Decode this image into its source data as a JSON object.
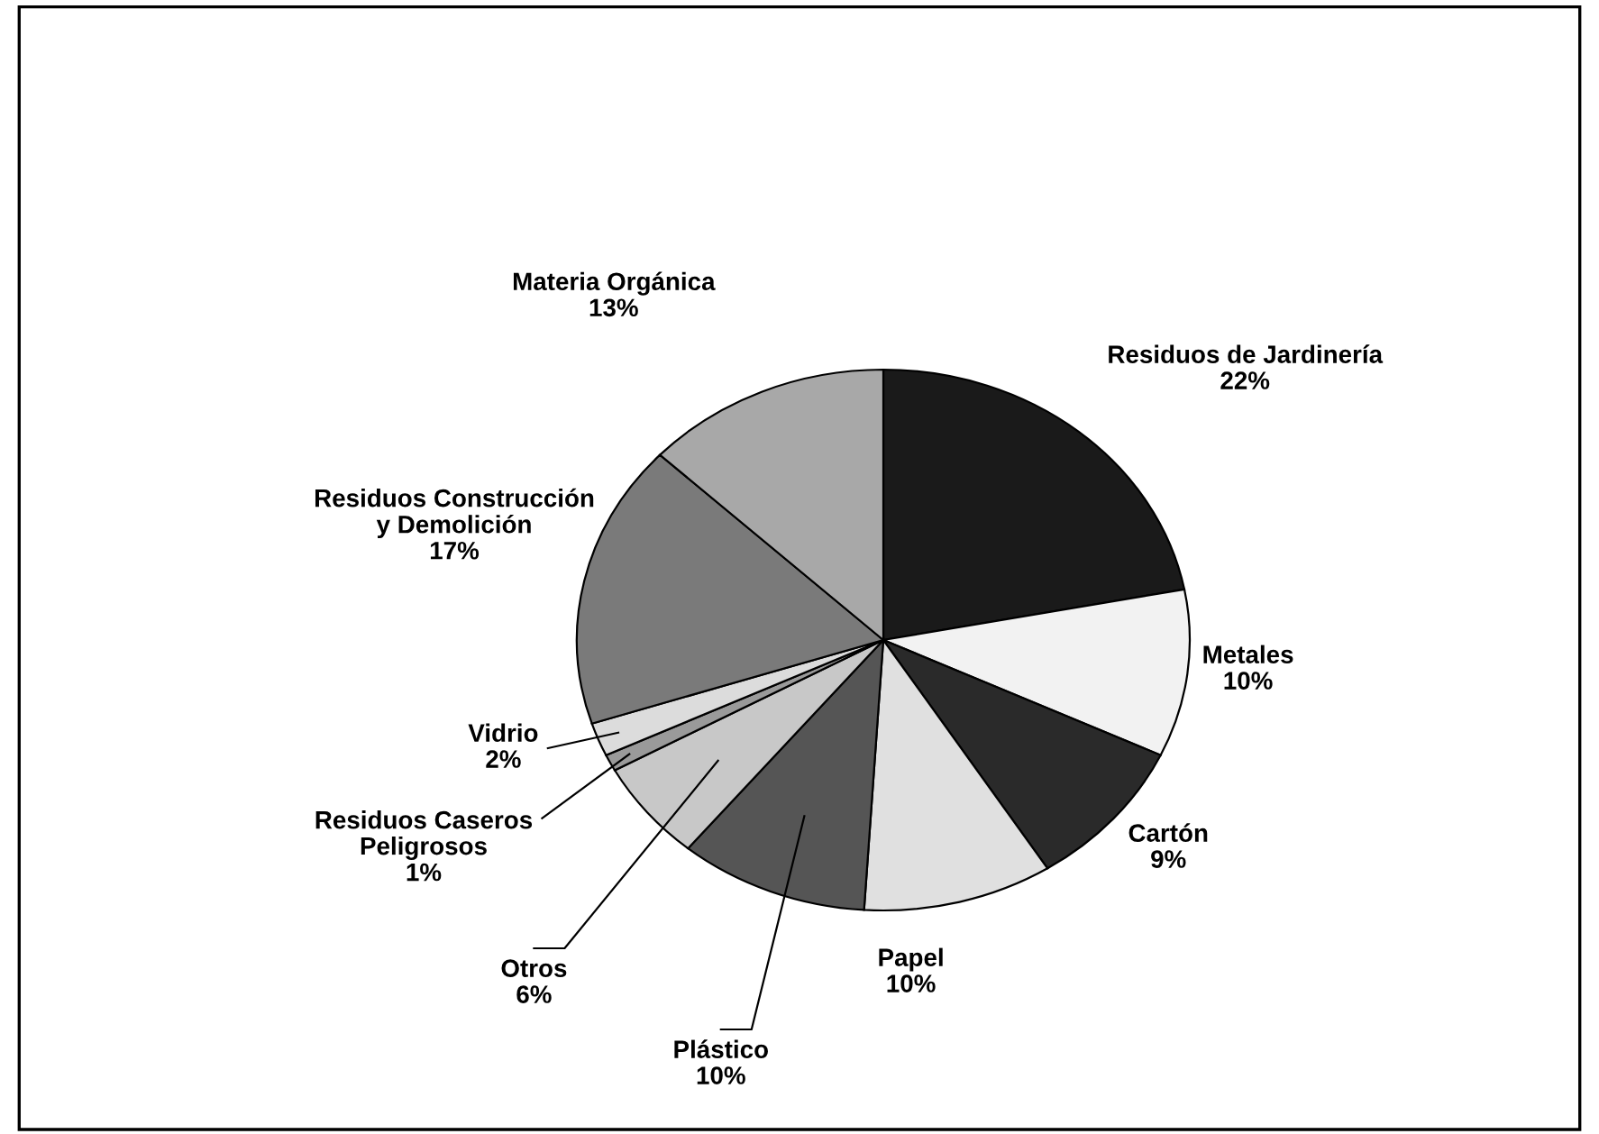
{
  "chart_data": {
    "type": "pie",
    "categories": [
      "Residuos de Jardinería",
      "Metales",
      "Cartón",
      "Papel",
      "Plástico",
      "Otros",
      "Residuos Caseros Peligrosos",
      "Vidrio",
      "Residuos Construcción y Demolición",
      "Materia Orgánica"
    ],
    "values": [
      22,
      10,
      9,
      10,
      10,
      6,
      1,
      2,
      17,
      13
    ],
    "value_labels": [
      "22%",
      "10%",
      "9%",
      "10%",
      "10%",
      "6%",
      "1%",
      "2%",
      "17%",
      "13%"
    ],
    "colors": [
      "#1a1a1a",
      "#f2f2f2",
      "#2a2a2a",
      "#e0e0e0",
      "#555555",
      "#c8c8c8",
      "#9a9a9a",
      "#dcdcdc",
      "#7a7a7a",
      "#a8a8a8"
    ],
    "legend": false
  }
}
